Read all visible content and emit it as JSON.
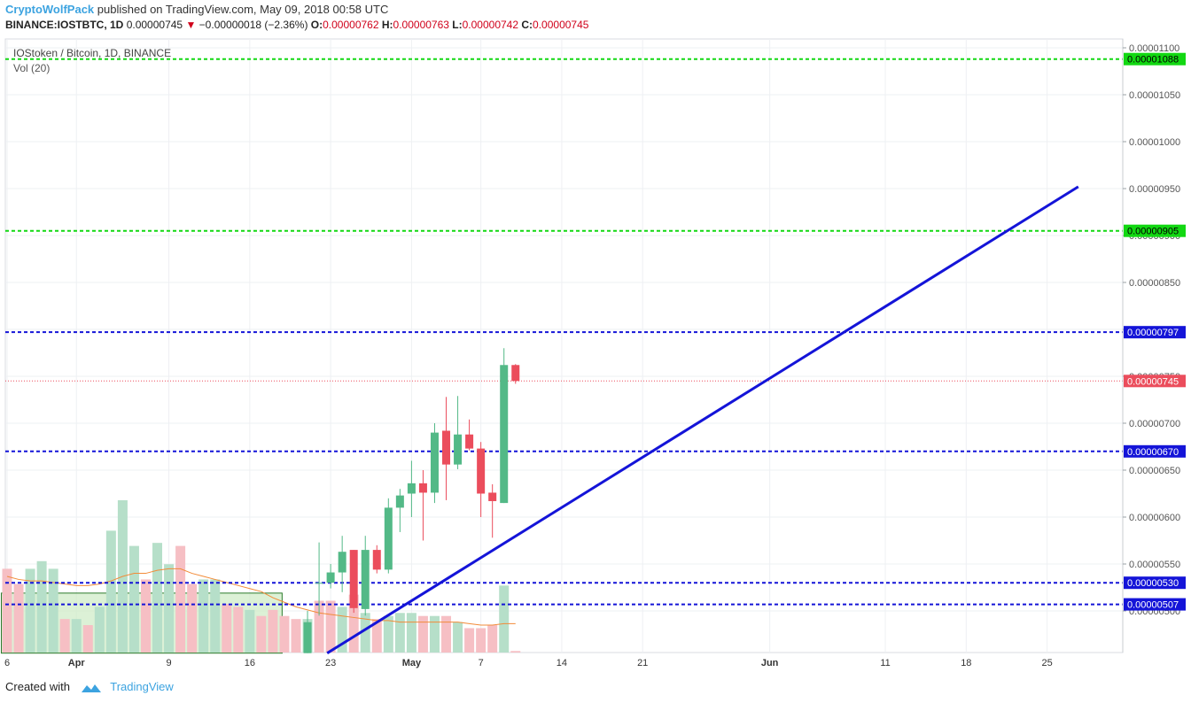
{
  "header": {
    "author": "CryptoWolfPack",
    "published": "published on TradingView.com, May 09, 2018 00:58 UTC",
    "symbol": "BINANCE:IOSTBTC, 1D",
    "last": "0.00000745",
    "change": "−0.00000018 (−2.36%)",
    "o_label": "O:",
    "o_value": "0.00000762",
    "h_label": "H:",
    "h_value": "0.00000763",
    "l_label": "L:",
    "l_value": "0.00000742",
    "c_label": "C:",
    "c_value": "0.00000745"
  },
  "legend": {
    "title": "IOStoken / Bitcoin, 1D, BINANCE",
    "volume": "Vol (20)"
  },
  "footer": {
    "created_with": "Created with",
    "brand": "TradingView"
  },
  "colors": {
    "up": "#53b987",
    "down": "#eb4d5c",
    "vol_up": "#b6dfc9",
    "vol_down": "#f6bfc4",
    "trend": "#1414d8",
    "support": "#1414d8",
    "resistance": "#12d812",
    "last_price": "#eb4d5c",
    "vol_ma": "#f28b38",
    "zone": "#cdebc4",
    "zone_border": "#2b7a2b"
  },
  "chart_data": {
    "type": "candlestick",
    "symbol": "IOSTBTC",
    "interval": "1D",
    "y_range": [
      4.55e-06,
      1.112e-05
    ],
    "y_ticks": [
      "0.00001100",
      "0.00001050",
      "0.00001000",
      "0.00000950",
      "0.00000900",
      "0.00000850",
      "0.00000800",
      "0.00000750",
      "0.00000700",
      "0.00000650",
      "0.00000600",
      "0.00000550",
      "0.00000500"
    ],
    "y_tick_values": [
      1.1e-05,
      1.05e-05,
      1e-05,
      9.5e-06,
      9e-06,
      8.5e-06,
      8e-06,
      7.5e-06,
      7e-06,
      6.5e-06,
      6e-06,
      5.5e-06,
      5e-06
    ],
    "x_ticks": [
      {
        "label": "6",
        "day": 0
      },
      {
        "label": "Apr",
        "day": 6
      },
      {
        "label": "9",
        "day": 14
      },
      {
        "label": "16",
        "day": 21
      },
      {
        "label": "23",
        "day": 28
      },
      {
        "label": "May",
        "day": 35
      },
      {
        "label": "7",
        "day": 41
      },
      {
        "label": "14",
        "day": 48
      },
      {
        "label": "21",
        "day": 55
      },
      {
        "label": "Jun",
        "day": 66
      },
      {
        "label": "11",
        "day": 76
      },
      {
        "label": "18",
        "day": 83
      },
      {
        "label": "25",
        "day": 90
      }
    ],
    "candles": [
      {
        "day": 26,
        "o": 4.55e-06,
        "h": 5e-06,
        "l": 4.55e-06,
        "c": 4.88e-06
      },
      {
        "day": 27,
        "o": 5.3e-06,
        "h": 5.73e-06,
        "l": 4.95e-06,
        "c": 5.3e-06
      },
      {
        "day": 28,
        "o": 5.3e-06,
        "h": 5.5e-06,
        "l": 5.24e-06,
        "c": 5.41e-06
      },
      {
        "day": 29,
        "o": 5.41e-06,
        "h": 5.8e-06,
        "l": 5.2e-06,
        "c": 5.63e-06
      },
      {
        "day": 30,
        "o": 5.65e-06,
        "h": 5.65e-06,
        "l": 4.98e-06,
        "c": 5.03e-06
      },
      {
        "day": 31,
        "o": 5.02e-06,
        "h": 5.8e-06,
        "l": 4.95e-06,
        "c": 5.65e-06
      },
      {
        "day": 32,
        "o": 5.65e-06,
        "h": 5.7e-06,
        "l": 5.4e-06,
        "c": 5.44e-06
      },
      {
        "day": 33,
        "o": 5.44e-06,
        "h": 6.2e-06,
        "l": 5.4e-06,
        "c": 6.1e-06
      },
      {
        "day": 34,
        "o": 6.1e-06,
        "h": 6.3e-06,
        "l": 5.84e-06,
        "c": 6.23e-06
      },
      {
        "day": 35,
        "o": 6.25e-06,
        "h": 6.6e-06,
        "l": 6e-06,
        "c": 6.36e-06
      },
      {
        "day": 36,
        "o": 6.36e-06,
        "h": 6.5e-06,
        "l": 5.75e-06,
        "c": 6.26e-06
      },
      {
        "day": 37,
        "o": 6.26e-06,
        "h": 7e-06,
        "l": 6.15e-06,
        "c": 6.9e-06
      },
      {
        "day": 38,
        "o": 6.92e-06,
        "h": 7.28e-06,
        "l": 6.18e-06,
        "c": 6.56e-06
      },
      {
        "day": 39,
        "o": 6.56e-06,
        "h": 7.29e-06,
        "l": 6.51e-06,
        "c": 6.88e-06
      },
      {
        "day": 40,
        "o": 6.88e-06,
        "h": 7.04e-06,
        "l": 6.71e-06,
        "c": 6.73e-06
      },
      {
        "day": 41,
        "o": 6.73e-06,
        "h": 6.8e-06,
        "l": 6e-06,
        "c": 6.25e-06
      },
      {
        "day": 42,
        "o": 6.26e-06,
        "h": 6.35e-06,
        "l": 5.78e-06,
        "c": 6.17e-06
      },
      {
        "day": 43,
        "o": 6.15e-06,
        "h": 7.8e-06,
        "l": 6.15e-06,
        "c": 7.62e-06
      },
      {
        "day": 44,
        "o": 7.62e-06,
        "h": 7.63e-06,
        "l": 7.42e-06,
        "c": 7.45e-06
      }
    ],
    "volume": [
      {
        "day": 0,
        "v": 0.55,
        "up": false
      },
      {
        "day": 1,
        "v": 0.45,
        "up": false
      },
      {
        "day": 2,
        "v": 0.55,
        "up": true
      },
      {
        "day": 3,
        "v": 0.6,
        "up": true
      },
      {
        "day": 4,
        "v": 0.55,
        "up": true
      },
      {
        "day": 5,
        "v": 0.22,
        "up": false
      },
      {
        "day": 6,
        "v": 0.22,
        "up": true
      },
      {
        "day": 7,
        "v": 0.18,
        "up": false
      },
      {
        "day": 8,
        "v": 0.3,
        "up": true
      },
      {
        "day": 9,
        "v": 0.8,
        "up": true
      },
      {
        "day": 10,
        "v": 1.0,
        "up": true
      },
      {
        "day": 11,
        "v": 0.7,
        "up": true
      },
      {
        "day": 12,
        "v": 0.48,
        "up": false
      },
      {
        "day": 13,
        "v": 0.72,
        "up": true
      },
      {
        "day": 14,
        "v": 0.58,
        "up": true
      },
      {
        "day": 15,
        "v": 0.7,
        "up": false
      },
      {
        "day": 16,
        "v": 0.45,
        "up": false
      },
      {
        "day": 17,
        "v": 0.48,
        "up": true
      },
      {
        "day": 18,
        "v": 0.48,
        "up": true
      },
      {
        "day": 19,
        "v": 0.32,
        "up": false
      },
      {
        "day": 20,
        "v": 0.3,
        "up": false
      },
      {
        "day": 21,
        "v": 0.28,
        "up": true
      },
      {
        "day": 22,
        "v": 0.24,
        "up": false
      },
      {
        "day": 23,
        "v": 0.28,
        "up": false
      },
      {
        "day": 24,
        "v": 0.24,
        "up": false
      },
      {
        "day": 25,
        "v": 0.22,
        "up": false
      },
      {
        "day": 26,
        "v": 0.22,
        "up": true
      },
      {
        "day": 27,
        "v": 0.34,
        "up": false
      },
      {
        "day": 28,
        "v": 0.34,
        "up": false
      },
      {
        "day": 29,
        "v": 0.3,
        "up": true
      },
      {
        "day": 30,
        "v": 0.38,
        "up": false
      },
      {
        "day": 31,
        "v": 0.26,
        "up": true
      },
      {
        "day": 32,
        "v": 0.22,
        "up": false
      },
      {
        "day": 33,
        "v": 0.24,
        "up": true
      },
      {
        "day": 34,
        "v": 0.26,
        "up": true
      },
      {
        "day": 35,
        "v": 0.26,
        "up": true
      },
      {
        "day": 36,
        "v": 0.24,
        "up": false
      },
      {
        "day": 37,
        "v": 0.24,
        "up": true
      },
      {
        "day": 38,
        "v": 0.24,
        "up": false
      },
      {
        "day": 39,
        "v": 0.2,
        "up": true
      },
      {
        "day": 40,
        "v": 0.16,
        "up": false
      },
      {
        "day": 41,
        "v": 0.16,
        "up": false
      },
      {
        "day": 42,
        "v": 0.18,
        "up": false
      },
      {
        "day": 43,
        "v": 0.44,
        "up": true
      },
      {
        "day": 44,
        "v": 0.01,
        "up": false
      }
    ],
    "volume_ma": [
      0.5,
      0.48,
      0.47,
      0.47,
      0.46,
      0.45,
      0.44,
      0.44,
      0.45,
      0.47,
      0.5,
      0.52,
      0.52,
      0.54,
      0.55,
      0.55,
      0.52,
      0.5,
      0.48,
      0.46,
      0.44,
      0.42,
      0.4,
      0.36,
      0.33,
      0.3,
      0.28,
      0.26,
      0.25,
      0.24,
      0.23,
      0.22,
      0.21,
      0.21,
      0.2,
      0.2,
      0.2,
      0.2,
      0.2,
      0.2,
      0.19,
      0.18,
      0.18,
      0.19,
      0.19
    ],
    "horizontal_lines": [
      {
        "value": 1.088e-05,
        "label": "0.00001088",
        "kind": "resistance"
      },
      {
        "value": 9.05e-06,
        "label": "0.00000905",
        "kind": "resistance"
      },
      {
        "value": 7.97e-06,
        "label": "0.00000797",
        "kind": "support"
      },
      {
        "value": 6.7e-06,
        "label": "0.00000670",
        "kind": "support"
      },
      {
        "value": 5.3e-06,
        "label": "0.00000530",
        "kind": "support"
      },
      {
        "value": 5.07e-06,
        "label": "0.00000507",
        "kind": "support"
      }
    ],
    "last_price": {
      "value": 7.45e-06,
      "label": "0.00000745"
    },
    "trendline": {
      "x1": 27.7,
      "y1": 4.55e-06,
      "x2": 92.7,
      "y2": 9.52e-06
    },
    "zone": {
      "x1": -0.5,
      "x2": 23.8,
      "y_top": 5.19e-06,
      "y_bottom": 4.55e-06
    }
  }
}
